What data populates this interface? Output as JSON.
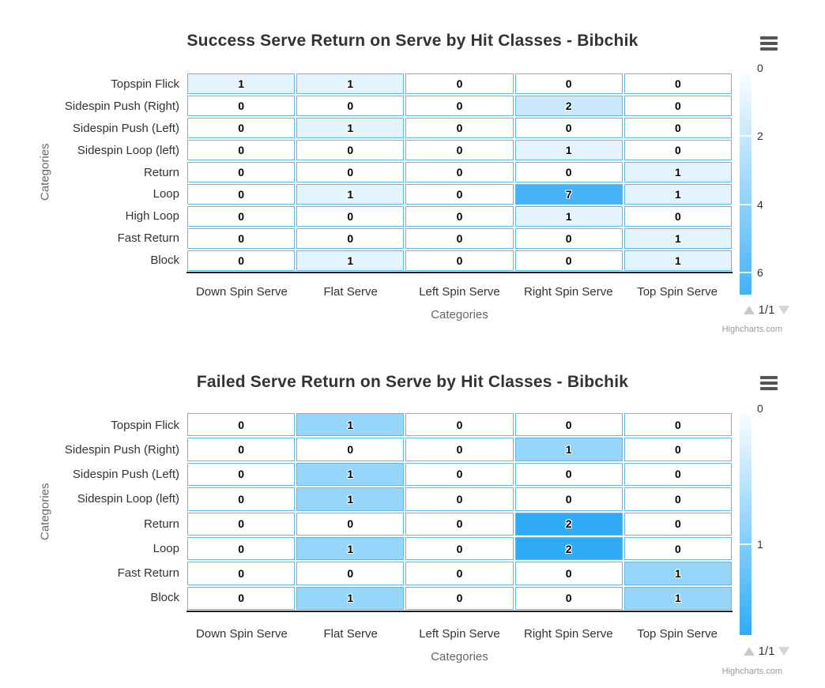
{
  "ui": {
    "menu_icon": "hamburger-icon",
    "colors": {
      "title": "#333333",
      "axis_label": "#333333",
      "axis_title": "#666666",
      "cell_border": "#58baf3",
      "axis_line": "#1e2230",
      "credit": "#999999",
      "pager_arrows": "#cccccc",
      "menu_icon": "#555555",
      "background": "#ffffff"
    }
  },
  "chart_data": [
    {
      "type": "heatmap",
      "title": "Success Serve Return on Serve by Hit Classes - Bibchik",
      "xlabel": "Categories",
      "ylabel": "Categories",
      "x_categories": [
        "Down Spin Serve",
        "Flat Serve",
        "Left Spin Serve",
        "Right Spin Serve",
        "Top Spin Serve"
      ],
      "y_categories": [
        "Topspin Flick",
        "Sidespin Push (Right)",
        "Sidespin Push (Left)",
        "Sidespin Loop (left)",
        "Return",
        "Loop",
        "High Loop",
        "Fast Return",
        "Block"
      ],
      "values": [
        [
          1,
          1,
          0,
          0,
          0
        ],
        [
          0,
          0,
          0,
          2,
          0
        ],
        [
          0,
          1,
          0,
          0,
          0
        ],
        [
          0,
          0,
          0,
          1,
          0
        ],
        [
          0,
          0,
          0,
          0,
          1
        ],
        [
          0,
          1,
          0,
          7,
          1
        ],
        [
          0,
          0,
          0,
          1,
          0
        ],
        [
          0,
          0,
          0,
          0,
          1
        ],
        [
          0,
          1,
          0,
          0,
          1
        ]
      ],
      "color_axis": {
        "min": 0,
        "max": 7,
        "tick_labels": [
          0,
          2,
          4,
          6
        ],
        "legend_scale_max": 6.65,
        "min_color": "#ffffff",
        "max_color": "#45b3f5"
      },
      "legend_position": "right",
      "pagination": "1/1",
      "credit": "Highcharts.com"
    },
    {
      "type": "heatmap",
      "title": "Failed Serve Return on Serve by Hit Classes - Bibchik",
      "xlabel": "Categories",
      "ylabel": "Categories",
      "x_categories": [
        "Down Spin Serve",
        "Flat Serve",
        "Left Spin Serve",
        "Right Spin Serve",
        "Top Spin Serve"
      ],
      "y_categories": [
        "Topspin Flick",
        "Sidespin Push (Right)",
        "Sidespin Push (Left)",
        "Sidespin Loop (left)",
        "Return",
        "Loop",
        "Fast Return",
        "Block"
      ],
      "values": [
        [
          0,
          1,
          0,
          0,
          0
        ],
        [
          0,
          0,
          0,
          1,
          0
        ],
        [
          0,
          1,
          0,
          0,
          0
        ],
        [
          0,
          1,
          0,
          0,
          0
        ],
        [
          0,
          0,
          0,
          2,
          0
        ],
        [
          0,
          1,
          0,
          2,
          0
        ],
        [
          0,
          0,
          0,
          0,
          1
        ],
        [
          0,
          1,
          0,
          0,
          1
        ]
      ],
      "color_axis": {
        "min": 0,
        "max": 2,
        "tick_labels": [
          0,
          1
        ],
        "legend_scale_max": 1.67,
        "min_color": "#ffffff",
        "max_color": "#2facf5"
      },
      "legend_position": "right",
      "pagination": "1/1",
      "credit": "Highcharts.com"
    }
  ]
}
